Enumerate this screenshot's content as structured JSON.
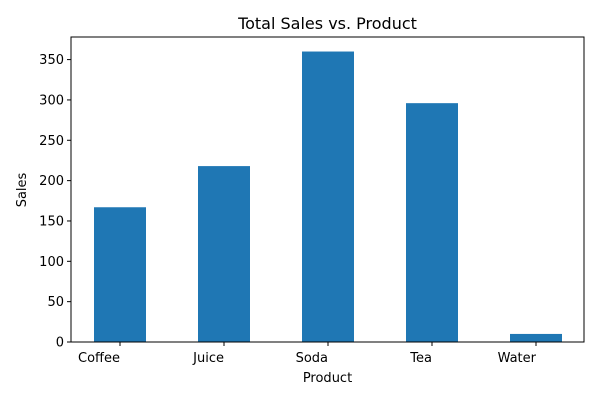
{
  "chart_data": {
    "type": "bar",
    "title": "Total Sales vs. Product",
    "xlabel": "Product",
    "ylabel": "Sales",
    "categories": [
      "Coffee",
      "Juice",
      "Soda",
      "Tea",
      "Water"
    ],
    "values": [
      167,
      218,
      360,
      296,
      10
    ],
    "ylim": [
      0,
      378
    ],
    "yticks": [
      0,
      50,
      100,
      150,
      200,
      250,
      300,
      350
    ],
    "grid": false,
    "bar_color": "#1f77b4"
  }
}
